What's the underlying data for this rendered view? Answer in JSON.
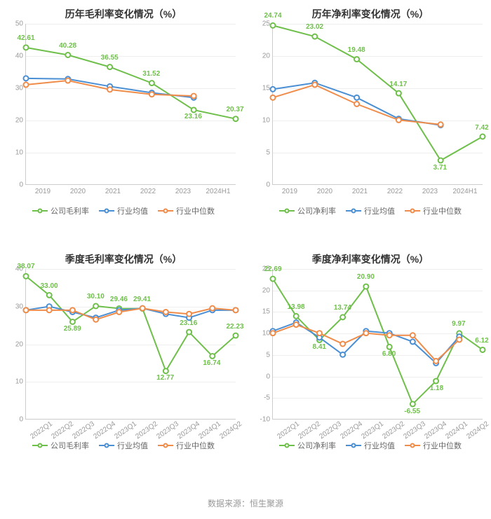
{
  "footer_text": "数据来源：恒生聚源",
  "legend_labels": {
    "s0_gross": "公司毛利率",
    "s0_net": "公司净利率",
    "s1": "行业均值",
    "s2": "行业中位数"
  },
  "colors": {
    "s0": "#6fbf4b",
    "s1": "#4a8fd4",
    "s2": "#f08c4a",
    "grid": "#eeeeee",
    "axis": "#cccccc",
    "text_label": "#333333",
    "tick": "#999999"
  },
  "charts": [
    {
      "id": "annual_gross",
      "title": "历年毛利率变化情况（%）",
      "ylim": [
        0,
        50
      ],
      "ytick_step": 10,
      "x": [
        "2019",
        "2020",
        "2021",
        "2022",
        "2023",
        "2024H1"
      ],
      "x_rotate": false,
      "series": [
        {
          "key": "s0",
          "legend": "s0_gross",
          "y": [
            42.61,
            40.28,
            36.55,
            31.52,
            23.16,
            20.37
          ],
          "labels": [
            {
              "i": 0,
              "v": "42.61"
            },
            {
              "i": 1,
              "v": "40.28"
            },
            {
              "i": 2,
              "v": "36.55"
            },
            {
              "i": 3,
              "v": "31.52"
            },
            {
              "i": 4,
              "v": "23.16",
              "pos": "below"
            },
            {
              "i": 5,
              "v": "20.37"
            }
          ]
        },
        {
          "key": "s1",
          "legend": "s1",
          "y": [
            33.0,
            32.8,
            30.5,
            28.5,
            27.0,
            null
          ]
        },
        {
          "key": "s2",
          "legend": "s2",
          "y": [
            31.0,
            32.3,
            29.5,
            28.0,
            27.5,
            null
          ]
        }
      ]
    },
    {
      "id": "annual_net",
      "title": "历年净利率变化情况（%）",
      "ylim": [
        0,
        25
      ],
      "ytick_step": 5,
      "x": [
        "2019",
        "2020",
        "2021",
        "2022",
        "2023",
        "2024H1"
      ],
      "x_rotate": false,
      "series": [
        {
          "key": "s0",
          "legend": "s0_net",
          "y": [
            24.74,
            23.02,
            19.48,
            14.17,
            3.71,
            7.42
          ],
          "labels": [
            {
              "i": 0,
              "v": "24.74"
            },
            {
              "i": 1,
              "v": "23.02"
            },
            {
              "i": 2,
              "v": "19.48"
            },
            {
              "i": 3,
              "v": "14.17"
            },
            {
              "i": 4,
              "v": "3.71",
              "pos": "below"
            },
            {
              "i": 5,
              "v": "7.42"
            }
          ]
        },
        {
          "key": "s1",
          "legend": "s1",
          "y": [
            14.8,
            15.8,
            13.5,
            10.2,
            9.2,
            null
          ]
        },
        {
          "key": "s2",
          "legend": "s2",
          "y": [
            13.5,
            15.5,
            12.5,
            10.0,
            9.3,
            null
          ]
        }
      ]
    },
    {
      "id": "quarter_gross",
      "title": "季度毛利率变化情况（%）",
      "ylim": [
        0,
        40
      ],
      "ytick_step": 10,
      "x": [
        "2022Q1",
        "2022Q2",
        "2022Q3",
        "2022Q4",
        "2023Q1",
        "2023Q2",
        "2023Q3",
        "2023Q4",
        "2024Q1",
        "2024Q2"
      ],
      "x_rotate": true,
      "series": [
        {
          "key": "s0",
          "legend": "s0_gross",
          "y": [
            38.07,
            33.0,
            25.89,
            30.1,
            29.46,
            29.41,
            12.77,
            23.16,
            16.74,
            22.23
          ],
          "labels": [
            {
              "i": 0,
              "v": "38.07"
            },
            {
              "i": 1,
              "v": "33.00"
            },
            {
              "i": 2,
              "v": "25.89",
              "pos": "below"
            },
            {
              "i": 3,
              "v": "30.10"
            },
            {
              "i": 4,
              "v": "29.46"
            },
            {
              "i": 5,
              "v": "29.41"
            },
            {
              "i": 6,
              "v": "12.77",
              "pos": "below"
            },
            {
              "i": 7,
              "v": "23.16"
            },
            {
              "i": 8,
              "v": "16.74",
              "pos": "below"
            },
            {
              "i": 9,
              "v": "22.23"
            }
          ]
        },
        {
          "key": "s1",
          "legend": "s1",
          "y": [
            29.0,
            30.0,
            28.5,
            27.0,
            29.0,
            29.5,
            28.0,
            27.0,
            29.0,
            29.0
          ]
        },
        {
          "key": "s2",
          "legend": "s2",
          "y": [
            29.0,
            29.0,
            29.0,
            26.5,
            28.5,
            29.5,
            28.5,
            28.0,
            29.5,
            29.0
          ]
        }
      ]
    },
    {
      "id": "quarter_net",
      "title": "季度净利率变化情况（%）",
      "ylim": [
        -10,
        25
      ],
      "ytick_step": 5,
      "x": [
        "2022Q1",
        "2022Q2",
        "2022Q3",
        "2022Q4",
        "2023Q1",
        "2023Q2",
        "2023Q3",
        "2023Q4",
        "2024Q1",
        "2024Q2"
      ],
      "x_rotate": true,
      "series": [
        {
          "key": "s0",
          "legend": "s0_net",
          "y": [
            22.69,
            13.98,
            8.41,
            13.74,
            20.9,
            6.8,
            -6.55,
            -1.18,
            9.97,
            6.12
          ],
          "labels": [
            {
              "i": 0,
              "v": "22.69"
            },
            {
              "i": 1,
              "v": "13.98"
            },
            {
              "i": 2,
              "v": "8.41",
              "pos": "below"
            },
            {
              "i": 3,
              "v": "13.74"
            },
            {
              "i": 4,
              "v": "20.90"
            },
            {
              "i": 5,
              "v": "6.80",
              "pos": "below"
            },
            {
              "i": 6,
              "v": "-6.55",
              "pos": "below"
            },
            {
              "i": 7,
              "v": "-1.18",
              "pos": "below"
            },
            {
              "i": 8,
              "v": "9.97"
            },
            {
              "i": 9,
              "v": "6.12"
            }
          ]
        },
        {
          "key": "s1",
          "legend": "s1",
          "y": [
            10.5,
            12.5,
            9.0,
            5.0,
            10.5,
            10.0,
            8.0,
            3.0,
            9.2,
            null
          ]
        },
        {
          "key": "s2",
          "legend": "s2",
          "y": [
            10.0,
            12.0,
            10.0,
            7.5,
            10.0,
            9.5,
            9.5,
            3.5,
            8.5,
            null
          ]
        }
      ]
    }
  ],
  "layout": {
    "plot_height_upper": 230,
    "plot_height_lower": 215,
    "plot_left_pad": 28,
    "marker_r": 3.5,
    "line_width": 2,
    "title_fontsize": 14,
    "tick_fontsize": 10,
    "legend_fontsize": 11,
    "label_fontsize": 10
  }
}
